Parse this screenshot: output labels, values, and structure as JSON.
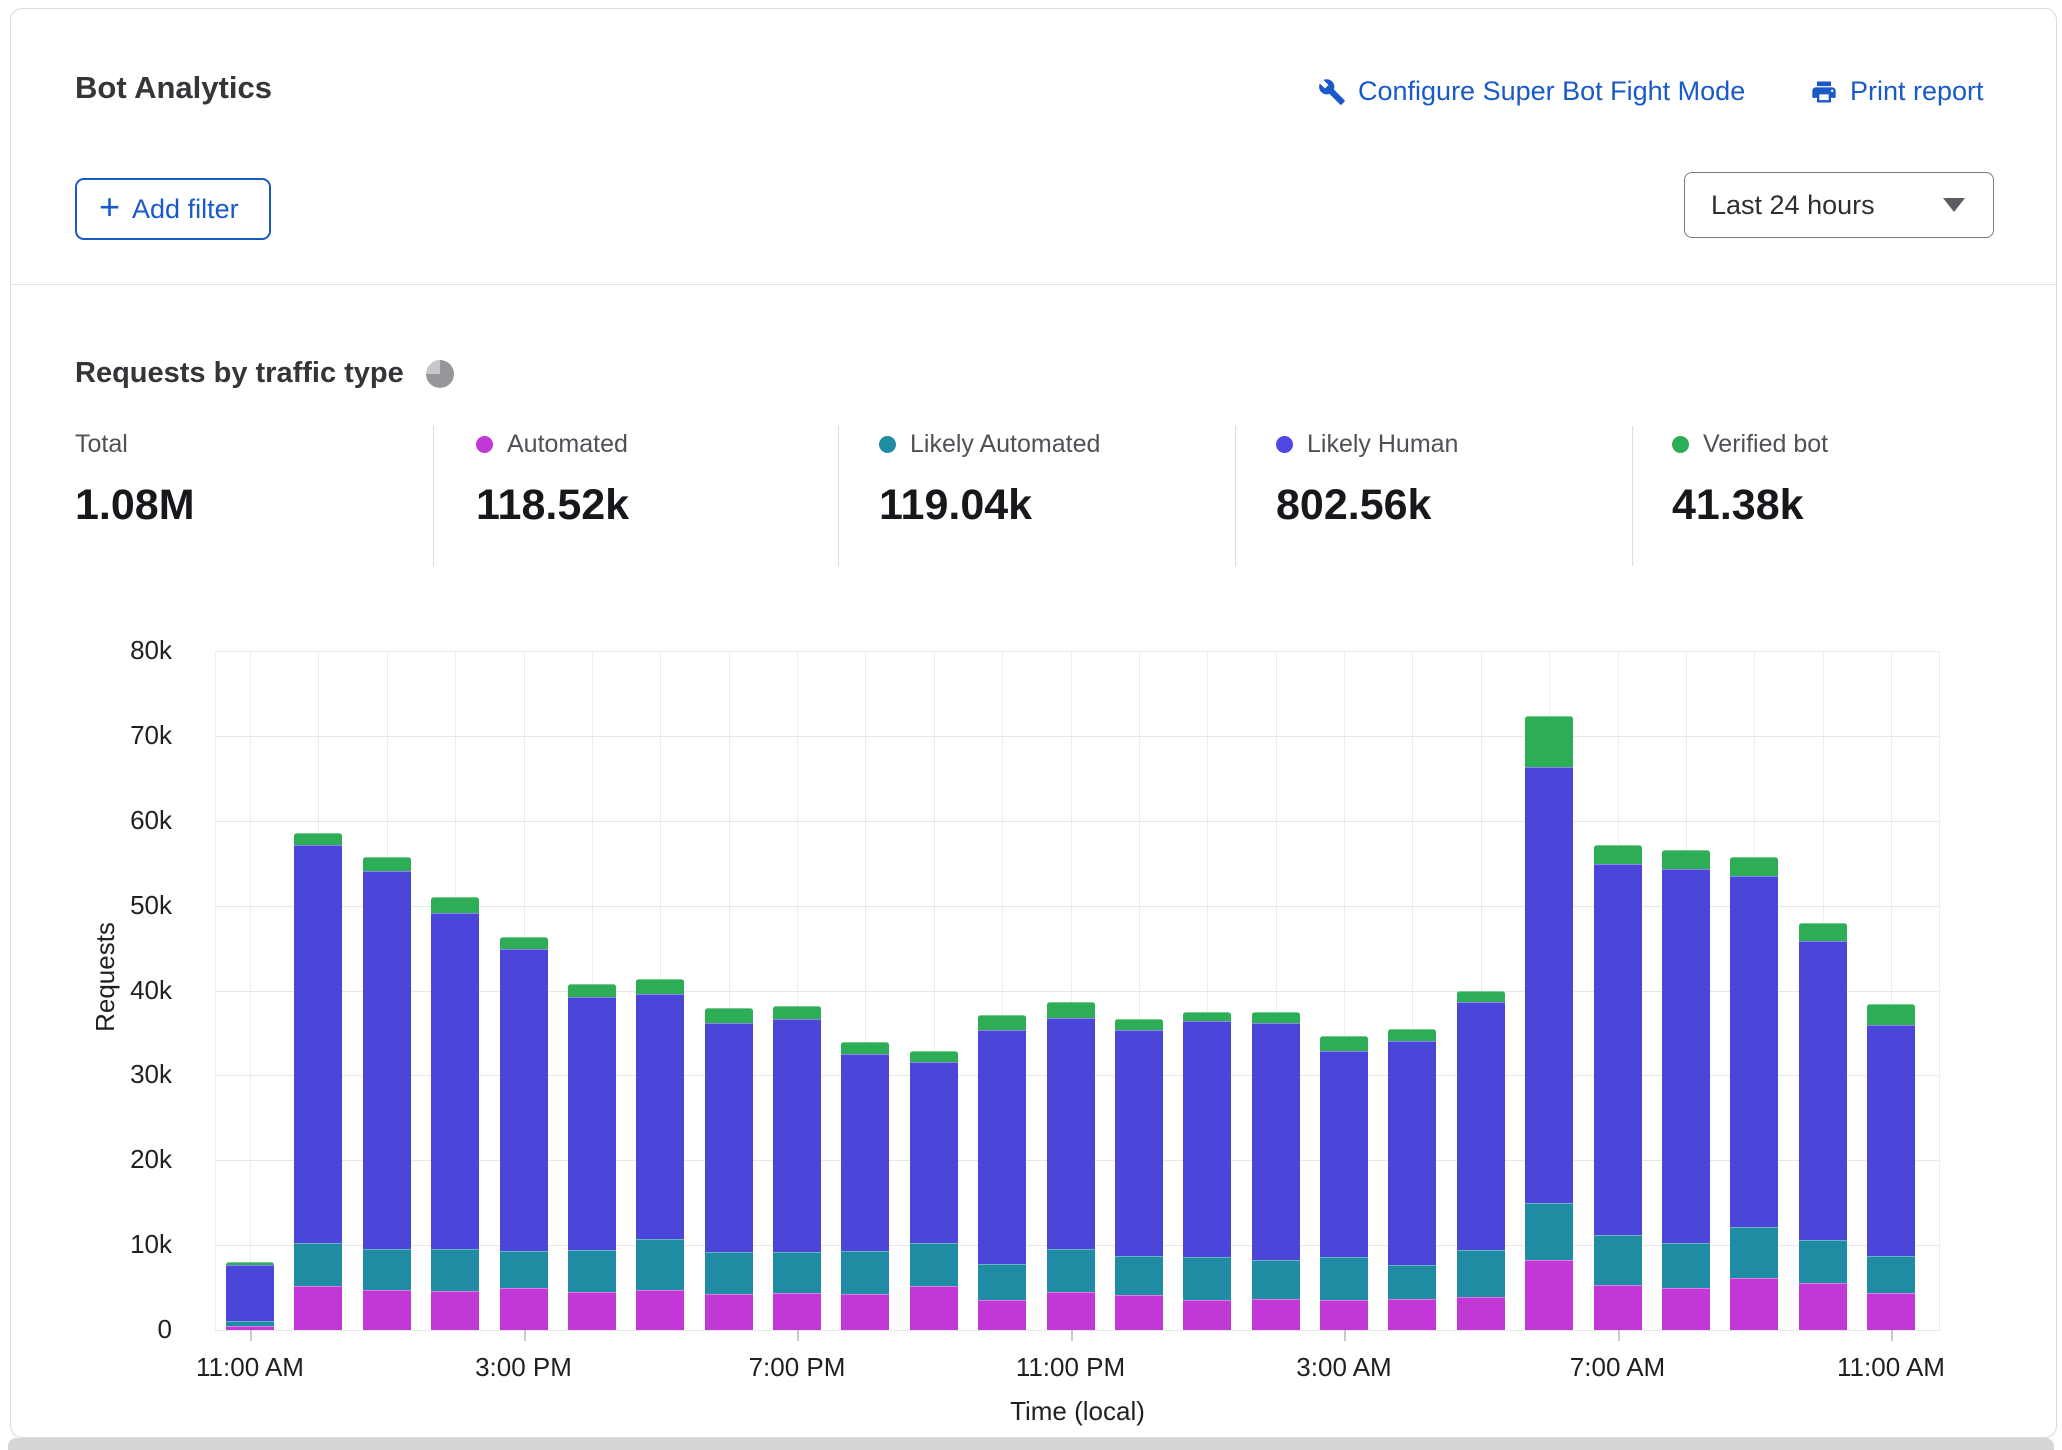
{
  "ui": {
    "accent": "#1959C8"
  },
  "header": {
    "title": "Bot Analytics",
    "configure_link": "Configure Super Bot Fight Mode",
    "print_link": "Print report",
    "add_filter_label": "Add filter",
    "time_range": "Last 24 hours"
  },
  "section": {
    "title": "Requests by traffic type"
  },
  "stats": [
    {
      "label": "Total",
      "value": "1.08M",
      "color": null
    },
    {
      "label": "Automated",
      "value": "118.52k",
      "color": "#C238D6"
    },
    {
      "label": "Likely Automated",
      "value": "119.04k",
      "color": "#1F8CA4"
    },
    {
      "label": "Likely Human",
      "value": "802.56k",
      "color": "#4F48E2"
    },
    {
      "label": "Verified bot",
      "value": "41.38k",
      "color": "#2EAD57"
    }
  ],
  "chart_data": {
    "type": "bar",
    "stacked": true,
    "title": "Requests by traffic type",
    "xlabel": "Time (local)",
    "ylabel": "Requests",
    "ylim": [
      0,
      80000
    ],
    "yticks": [
      0,
      10000,
      20000,
      30000,
      40000,
      50000,
      60000,
      70000,
      80000
    ],
    "ytick_labels": [
      "0",
      "10k",
      "20k",
      "30k",
      "40k",
      "50k",
      "60k",
      "70k",
      "80k"
    ],
    "grid": true,
    "legend_position": "top",
    "x_tick_label_every": 4,
    "x": [
      "11:00 AM",
      "12:00 PM",
      "1:00 PM",
      "2:00 PM",
      "3:00 PM",
      "4:00 PM",
      "5:00 PM",
      "6:00 PM",
      "7:00 PM",
      "8:00 PM",
      "9:00 PM",
      "10:00 PM",
      "11:00 PM",
      "12:00 AM",
      "1:00 AM",
      "2:00 AM",
      "3:00 AM",
      "4:00 AM",
      "5:00 AM",
      "6:00 AM",
      "7:00 AM",
      "8:00 AM",
      "9:00 AM",
      "10:00 AM",
      "11:00 AM"
    ],
    "series": [
      {
        "name": "Automated",
        "color": "#C238D6",
        "values": [
          500,
          5200,
          4700,
          4600,
          5000,
          4500,
          4700,
          4200,
          4400,
          4300,
          5200,
          3500,
          4500,
          4100,
          3500,
          3700,
          3500,
          3700,
          3900,
          8200,
          5300,
          5000,
          6100,
          5500,
          4400
        ]
      },
      {
        "name": "Likely Automated",
        "color": "#1F8CA4",
        "values": [
          600,
          5000,
          4900,
          4900,
          4300,
          4900,
          6000,
          5000,
          4800,
          5000,
          5000,
          4300,
          5000,
          4600,
          5100,
          4500,
          5100,
          4000,
          5500,
          6800,
          5900,
          5200,
          6000,
          5100,
          4300
        ]
      },
      {
        "name": "Likely Human",
        "color": "#4B45DA",
        "values": [
          6600,
          46900,
          44500,
          39600,
          35600,
          29800,
          28900,
          27000,
          27400,
          23200,
          21400,
          27600,
          27300,
          26600,
          27800,
          28000,
          24300,
          26400,
          29300,
          51300,
          43700,
          44100,
          41400,
          35200,
          27200
        ]
      },
      {
        "name": "Verified bot",
        "color": "#2EAD57",
        "values": [
          300,
          1500,
          1600,
          1900,
          1400,
          1600,
          1800,
          1700,
          1600,
          1400,
          1300,
          1700,
          1800,
          1300,
          1100,
          1300,
          1700,
          1400,
          1300,
          6000,
          2200,
          2300,
          2200,
          2200,
          2500
        ]
      }
    ]
  }
}
